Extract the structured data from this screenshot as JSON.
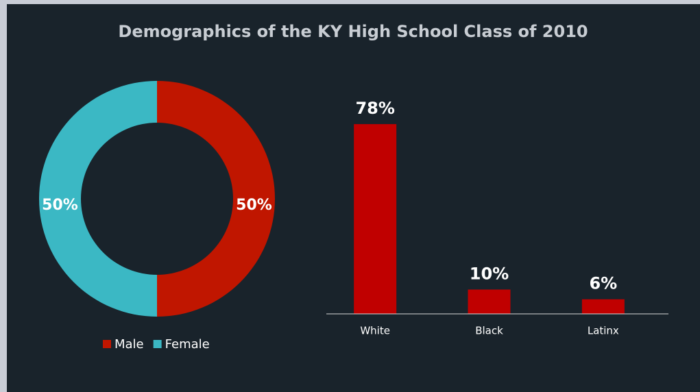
{
  "title": "Demographics of the KY High School Class of 2010",
  "chart_data": [
    {
      "type": "donut",
      "categories": [
        "Male",
        "Female"
      ],
      "values": [
        50,
        50
      ],
      "value_labels": [
        "50%",
        "50%"
      ],
      "colors": [
        "#c01600",
        "#3bb8c4"
      ],
      "legend": "bottom"
    },
    {
      "type": "bar",
      "categories": [
        "White",
        "Black",
        "Latinx"
      ],
      "values": [
        78,
        10,
        6
      ],
      "value_labels": [
        "78%",
        "10%",
        "6%"
      ],
      "color": "#c00000"
    }
  ]
}
